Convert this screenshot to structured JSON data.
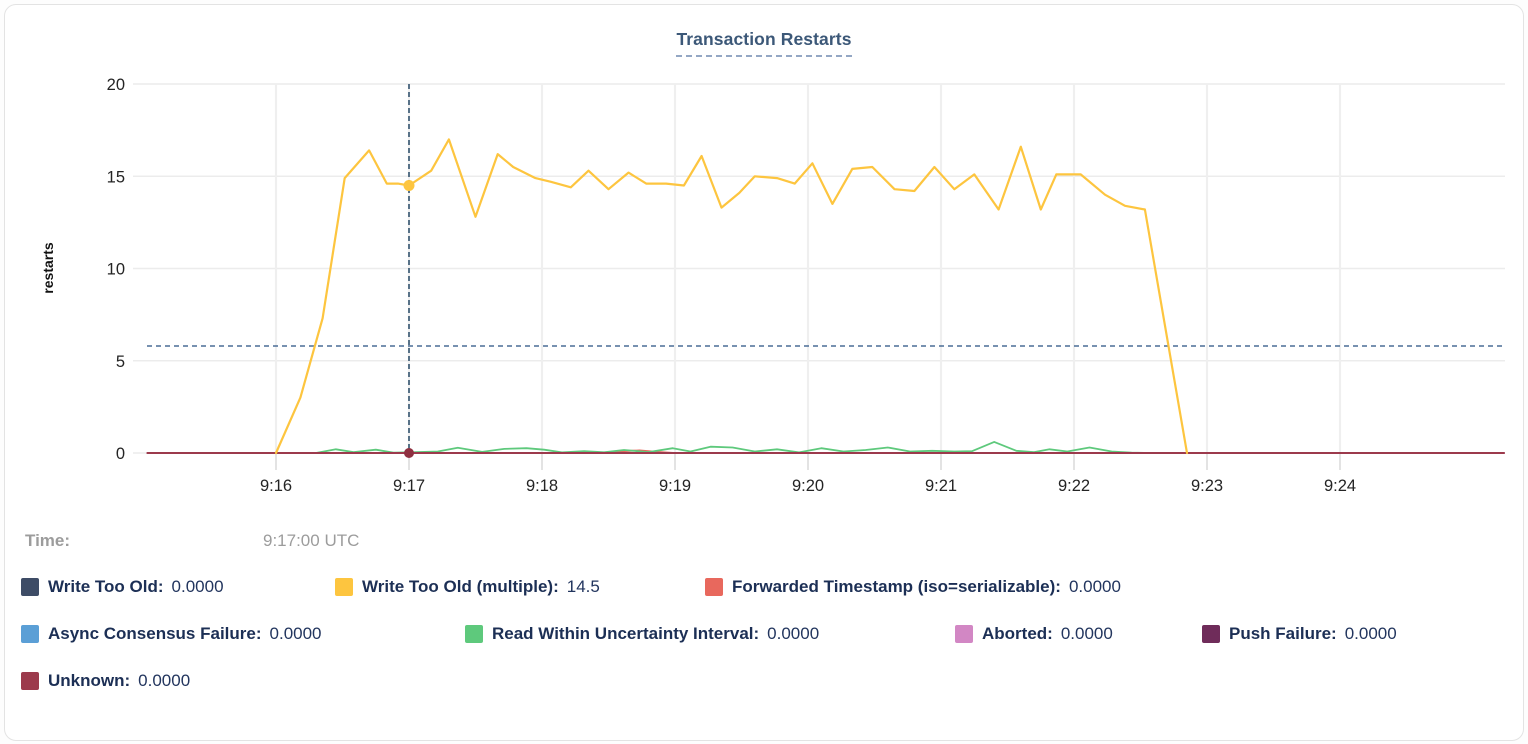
{
  "card": {
    "title": "Transaction Restarts"
  },
  "tooltip": {
    "time_label": "Time:",
    "time_value": "9:17:00 UTC"
  },
  "legend_rows": [
    [
      {
        "label": "Write Too Old:",
        "value": "0.0000",
        "color": "#3e4c66"
      },
      {
        "label": "Write Too Old (multiple):",
        "value": "14.5",
        "color": "#fdc53f"
      },
      {
        "label": "Forwarded Timestamp (iso=serializable):",
        "value": "0.0000",
        "color": "#e8685d"
      }
    ],
    [
      {
        "label": "Async Consensus Failure:",
        "value": "0.0000",
        "color": "#5b9fd6"
      },
      {
        "label": "Read Within Uncertainty Interval:",
        "value": "0.0000",
        "color": "#5ec97c"
      },
      {
        "label": "Aborted:",
        "value": "0.0000",
        "color": "#d287c4"
      },
      {
        "label": "Push Failure:",
        "value": "0.0000",
        "color": "#6f2c5a"
      }
    ],
    [
      {
        "label": "Unknown:",
        "value": "0.0000",
        "color": "#9c3a4c"
      }
    ]
  ],
  "chart_data": {
    "type": "line",
    "title": "Transaction Restarts",
    "ylabel": "restarts",
    "ylim": [
      0,
      20
    ],
    "y_ticks": [
      0,
      5,
      10,
      15,
      20
    ],
    "x_tick_labels": [
      "9:16",
      "9:17",
      "9:18",
      "9:19",
      "9:20",
      "9:21",
      "9:22",
      "9:23",
      "9:24"
    ],
    "grid": true,
    "legend_position": "bottom",
    "dashed_hline_value": 5.8,
    "hover": {
      "time_label": "9:17:00 UTC",
      "time_sec": 60,
      "dots": [
        {
          "series": "Write Too Old (multiple)",
          "value": 14.5,
          "color": "#fdc53f"
        },
        {
          "series": "Unknown",
          "value": 0,
          "color": "#8e3040"
        }
      ]
    },
    "series": [
      {
        "name": "Write Too Old",
        "color": "#3e4c66",
        "width": 1.5,
        "points": [
          [
            -58,
            0
          ],
          [
            554,
            0
          ]
        ]
      },
      {
        "name": "Async Consensus Failure",
        "color": "#5b9fd6",
        "width": 1.5,
        "points": [
          [
            -58,
            0
          ],
          [
            554,
            0
          ]
        ]
      },
      {
        "name": "Aborted",
        "color": "#d287c4",
        "width": 1.5,
        "points": [
          [
            -58,
            0
          ],
          [
            554,
            0
          ]
        ]
      },
      {
        "name": "Push Failure",
        "color": "#6f2c5a",
        "width": 1.5,
        "points": [
          [
            -58,
            0
          ],
          [
            554,
            0
          ]
        ]
      },
      {
        "name": "Forwarded Timestamp (iso=serializable)",
        "color": "#e8685d",
        "width": 1.8,
        "points": [
          [
            -58,
            0
          ],
          [
            148,
            0
          ],
          [
            156,
            0.1
          ],
          [
            164,
            0.14
          ],
          [
            172,
            0.06
          ],
          [
            180,
            0
          ],
          [
            554,
            0
          ]
        ]
      },
      {
        "name": "Read Within Uncertainty Interval",
        "color": "#5ec97c",
        "width": 1.8,
        "points": [
          [
            18,
            0
          ],
          [
            27,
            0.2
          ],
          [
            35,
            0.05
          ],
          [
            45,
            0.18
          ],
          [
            53,
            0.02
          ],
          [
            63,
            0.05
          ],
          [
            73,
            0.08
          ],
          [
            82,
            0.28
          ],
          [
            93,
            0.06
          ],
          [
            103,
            0.22
          ],
          [
            113,
            0.26
          ],
          [
            121,
            0.18
          ],
          [
            129,
            0.03
          ],
          [
            139,
            0.1
          ],
          [
            148,
            0.04
          ],
          [
            157,
            0.16
          ],
          [
            168,
            0.05
          ],
          [
            179,
            0.26
          ],
          [
            187,
            0.08
          ],
          [
            196,
            0.34
          ],
          [
            206,
            0.3
          ],
          [
            216,
            0.08
          ],
          [
            226,
            0.2
          ],
          [
            236,
            0.03
          ],
          [
            246,
            0.26
          ],
          [
            256,
            0.08
          ],
          [
            266,
            0.16
          ],
          [
            276,
            0.3
          ],
          [
            286,
            0.08
          ],
          [
            296,
            0.12
          ],
          [
            306,
            0.08
          ],
          [
            314,
            0.1
          ],
          [
            324,
            0.6
          ],
          [
            334,
            0.12
          ],
          [
            342,
            0.05
          ],
          [
            349,
            0.2
          ],
          [
            357,
            0.08
          ],
          [
            367,
            0.3
          ],
          [
            377,
            0.08
          ],
          [
            386,
            0.02
          ],
          [
            393,
            0
          ]
        ]
      },
      {
        "name": "Unknown",
        "color": "#9c3a4c",
        "width": 2,
        "points": [
          [
            -58,
            0
          ],
          [
            554,
            0
          ]
        ]
      },
      {
        "name": "Write Too Old (multiple)",
        "color": "#fdc53f",
        "width": 2.2,
        "points": [
          [
            0,
            0
          ],
          [
            11,
            3.0
          ],
          [
            21,
            7.3
          ],
          [
            31,
            14.9
          ],
          [
            42,
            16.4
          ],
          [
            50,
            14.6
          ],
          [
            55,
            14.6
          ],
          [
            60,
            14.5
          ],
          [
            70,
            15.3
          ],
          [
            78,
            17.0
          ],
          [
            90,
            12.8
          ],
          [
            100,
            16.2
          ],
          [
            107,
            15.5
          ],
          [
            117,
            14.9
          ],
          [
            124,
            14.7
          ],
          [
            133,
            14.4
          ],
          [
            141,
            15.3
          ],
          [
            150,
            14.3
          ],
          [
            159,
            15.2
          ],
          [
            167,
            14.6
          ],
          [
            176,
            14.6
          ],
          [
            184,
            14.5
          ],
          [
            192,
            16.1
          ],
          [
            201,
            13.3
          ],
          [
            209,
            14.1
          ],
          [
            216,
            15.0
          ],
          [
            226,
            14.9
          ],
          [
            234,
            14.6
          ],
          [
            242,
            15.7
          ],
          [
            251,
            13.5
          ],
          [
            260,
            15.4
          ],
          [
            269,
            15.5
          ],
          [
            279,
            14.3
          ],
          [
            288,
            14.2
          ],
          [
            297,
            15.5
          ],
          [
            306,
            14.3
          ],
          [
            315,
            15.1
          ],
          [
            326,
            13.2
          ],
          [
            336,
            16.6
          ],
          [
            345,
            13.2
          ],
          [
            352,
            15.1
          ],
          [
            363,
            15.1
          ],
          [
            374,
            14.0
          ],
          [
            383,
            13.4
          ],
          [
            392,
            13.2
          ],
          [
            411,
            0
          ]
        ]
      }
    ]
  }
}
